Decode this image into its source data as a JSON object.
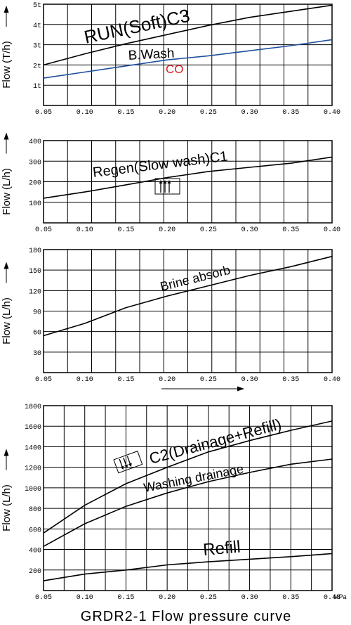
{
  "figure": {
    "title": "GRDR2-1 Flow pressure curve"
  },
  "colors": {
    "grid": "#000000",
    "curve": "#000000",
    "bwash": "#1f4f9f",
    "co": "#e02020"
  },
  "chart_data": [
    {
      "type": "line",
      "ylabel": "Flow (T/h)",
      "xlim": [
        0.05,
        0.4
      ],
      "ylim": [
        0,
        5
      ],
      "x_ticks": [
        "0.05",
        "0.10",
        "0.15",
        "0.20",
        "0.25",
        "0.30",
        "0.35",
        "0.40"
      ],
      "y_ticks": [
        "1t",
        "2t",
        "3t",
        "4t",
        "5t"
      ],
      "grid": true,
      "series": [
        {
          "name": "RUN(Soft)C3",
          "x": [
            0.05,
            0.1,
            0.15,
            0.2,
            0.25,
            0.3,
            0.35,
            0.4
          ],
          "y": [
            2.0,
            2.55,
            3.05,
            3.5,
            3.95,
            4.35,
            4.65,
            4.95
          ]
        },
        {
          "name": "B.Wash",
          "x": [
            0.05,
            0.1,
            0.15,
            0.2,
            0.25,
            0.3,
            0.35,
            0.4
          ],
          "y": [
            1.35,
            1.65,
            1.95,
            2.25,
            2.45,
            2.7,
            2.95,
            3.25
          ]
        }
      ],
      "annotations": [
        "CO"
      ]
    },
    {
      "type": "line",
      "ylabel": "Flow (L/h)",
      "xlim": [
        0.05,
        0.4
      ],
      "ylim": [
        0,
        400
      ],
      "x_ticks": [
        "0.05",
        "0.10",
        "0.15",
        "0.20",
        "0.25",
        "0.30",
        "0.35",
        "0.40"
      ],
      "y_ticks": [
        "100",
        "200",
        "300",
        "400"
      ],
      "grid": true,
      "series": [
        {
          "name": "Regen(Slow wash)C1",
          "x": [
            0.05,
            0.1,
            0.15,
            0.2,
            0.25,
            0.3,
            0.35,
            0.4
          ],
          "y": [
            120,
            150,
            185,
            220,
            250,
            270,
            290,
            320
          ]
        }
      ]
    },
    {
      "type": "line",
      "ylabel": "Flow (L/h)",
      "xlim": [
        0.05,
        0.4
      ],
      "ylim": [
        0,
        180
      ],
      "x_ticks": [
        "0.05",
        "0.10",
        "0.15",
        "0.20",
        "0.25",
        "0.30",
        "0.35",
        "0.40"
      ],
      "y_ticks": [
        "30",
        "60",
        "90",
        "120",
        "150",
        "180"
      ],
      "grid": true,
      "series": [
        {
          "name": "Brine absorb",
          "x": [
            0.05,
            0.1,
            0.15,
            0.2,
            0.25,
            0.3,
            0.35,
            0.4
          ],
          "y": [
            54,
            72,
            95,
            112,
            127,
            142,
            155,
            170
          ]
        }
      ]
    },
    {
      "type": "line",
      "ylabel": "Flow (L/h)",
      "xlim": [
        0.05,
        0.4
      ],
      "ylim": [
        0,
        1800
      ],
      "x_ticks": [
        "0.05",
        "0.10",
        "0.15",
        "0.20",
        "0.25",
        "0.30",
        "0.35",
        "0.40"
      ],
      "x_unit": "MPa",
      "y_ticks": [
        "200",
        "400",
        "600",
        "800",
        "1000",
        "1200",
        "1400",
        "1600",
        "1800"
      ],
      "grid": true,
      "series": [
        {
          "name": "C2(Drainage+Refill)",
          "x": [
            0.05,
            0.1,
            0.15,
            0.2,
            0.25,
            0.3,
            0.35,
            0.4
          ],
          "y": [
            560,
            830,
            1040,
            1200,
            1350,
            1460,
            1560,
            1650
          ]
        },
        {
          "name": "Washing drainage",
          "x": [
            0.05,
            0.1,
            0.15,
            0.2,
            0.25,
            0.3,
            0.35,
            0.4
          ],
          "y": [
            430,
            650,
            820,
            950,
            1060,
            1150,
            1230,
            1280
          ]
        },
        {
          "name": "Refill",
          "x": [
            0.05,
            0.1,
            0.15,
            0.2,
            0.25,
            0.3,
            0.35,
            0.4
          ],
          "y": [
            95,
            160,
            200,
            250,
            280,
            305,
            330,
            360
          ]
        }
      ]
    }
  ]
}
